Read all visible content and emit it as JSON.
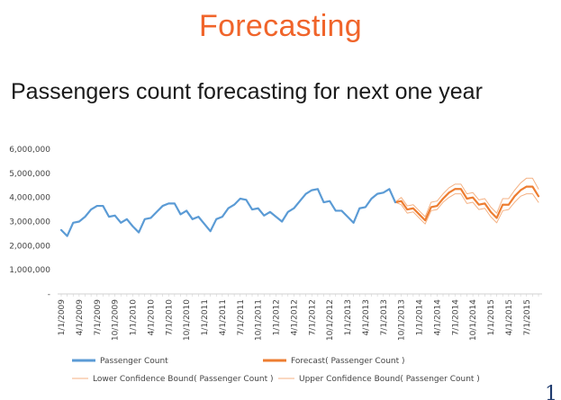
{
  "slide": {
    "title": "Forecasting",
    "subtitle": "Passengers count forecasting for next one year",
    "corner_glyph": "1"
  },
  "colors": {
    "title": "#f0642a",
    "passenger": "#5b9bd5",
    "forecast": "#ed7d31",
    "bound": "#f4b183"
  },
  "chart_data": {
    "type": "line",
    "title": "",
    "xlabel": "",
    "ylabel": "",
    "ylim": [
      0,
      6000000
    ],
    "yticks": [
      "-",
      "1,000,000",
      "2,000,000",
      "3,000,000",
      "4,000,000",
      "5,000,000",
      "6,000,000"
    ],
    "grid": false,
    "legend_position": "bottom",
    "x_tick_labels": [
      "1/1/2009",
      "4/1/2009",
      "7/1/2009",
      "10/1/2009",
      "1/1/2010",
      "4/1/2010",
      "7/1/2010",
      "10/1/2010",
      "1/1/2011",
      "4/1/2011",
      "7/1/2011",
      "10/1/2011",
      "1/1/2012",
      "4/1/2012",
      "7/1/2012",
      "10/1/2012",
      "1/1/2013",
      "4/1/2013",
      "7/1/2013",
      "10/1/2013",
      "1/1/2014",
      "4/1/2014",
      "7/1/2014",
      "10/1/2014",
      "1/1/2015",
      "4/1/2015",
      "7/1/2015"
    ],
    "x_start": "1/1/2009",
    "x_step": "1 month",
    "series": [
      {
        "name": "Passenger Count",
        "color": "#5b9bd5",
        "values": [
          2650000,
          2400000,
          2950000,
          3000000,
          3200000,
          3500000,
          3650000,
          3650000,
          3200000,
          3250000,
          2950000,
          3100000,
          2800000,
          2550000,
          3100000,
          3150000,
          3400000,
          3650000,
          3750000,
          3750000,
          3300000,
          3450000,
          3100000,
          3200000,
          2900000,
          2600000,
          3100000,
          3200000,
          3550000,
          3700000,
          3950000,
          3900000,
          3500000,
          3550000,
          3250000,
          3400000,
          3200000,
          3000000,
          3400000,
          3550000,
          3850000,
          4150000,
          4300000,
          4350000,
          3800000,
          3850000,
          3450000,
          3450000,
          3200000,
          2950000,
          3550000,
          3600000,
          3950000,
          4150000,
          4200000,
          4350000,
          3800000
        ],
        "x_start_index": 0
      },
      {
        "name": "Forecast( Passenger Count )",
        "color": "#ed7d31",
        "values": [
          3800000,
          3850000,
          3500000,
          3550000,
          3300000,
          3050000,
          3600000,
          3650000,
          3950000,
          4200000,
          4350000,
          4350000,
          3950000,
          4000000,
          3700000,
          3750000,
          3400000,
          3150000,
          3700000,
          3700000,
          4050000,
          4300000,
          4450000,
          4450000,
          4050000
        ],
        "x_start_index": 56
      },
      {
        "name": "Lower Confidence Bound( Passenger Count )",
        "color": "#f4b183",
        "values": [
          3800000,
          3700000,
          3350000,
          3400000,
          3150000,
          2900000,
          3450000,
          3500000,
          3800000,
          4000000,
          4150000,
          4150000,
          3750000,
          3800000,
          3500000,
          3550000,
          3200000,
          2950000,
          3450000,
          3500000,
          3800000,
          4050000,
          4150000,
          4150000,
          3800000
        ],
        "x_start_index": 56
      },
      {
        "name": "Upper Confidence Bound( Passenger Count )",
        "color": "#f4b183",
        "values": [
          3800000,
          4000000,
          3650000,
          3700000,
          3450000,
          3200000,
          3800000,
          3850000,
          4150000,
          4400000,
          4550000,
          4550000,
          4150000,
          4200000,
          3900000,
          3950000,
          3600000,
          3350000,
          3950000,
          3950000,
          4300000,
          4600000,
          4800000,
          4800000,
          4350000
        ],
        "x_start_index": 56
      }
    ],
    "legend": [
      {
        "label": "Passenger Count",
        "color": "#5b9bd5"
      },
      {
        "label": "Forecast( Passenger Count )",
        "color": "#ed7d31"
      },
      {
        "label": "Lower Confidence Bound( Passenger Count )",
        "color": "#f4b183"
      },
      {
        "label": "Upper Confidence Bound( Passenger Count )",
        "color": "#f4b183"
      }
    ]
  }
}
